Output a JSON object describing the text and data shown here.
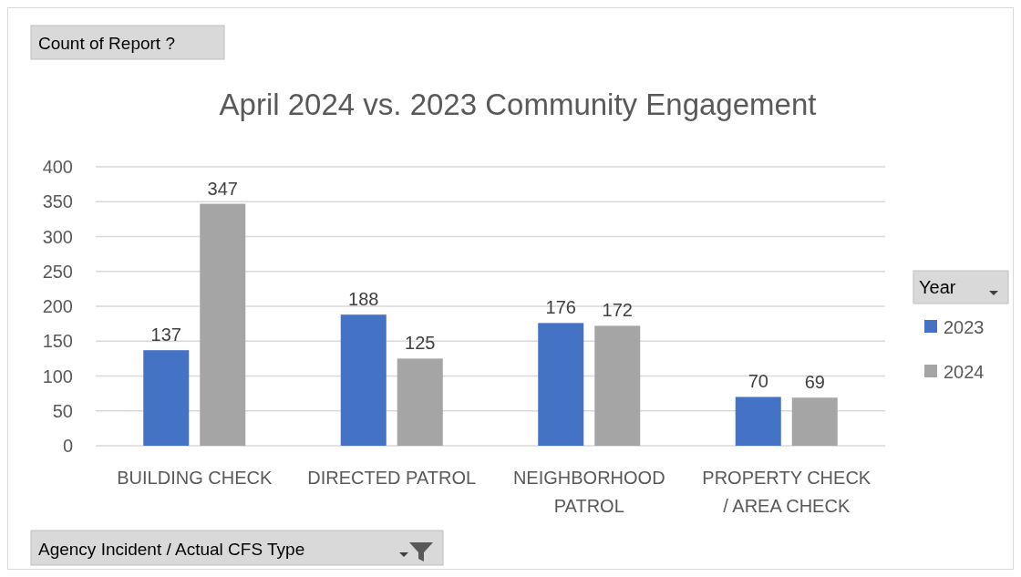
{
  "chart_data": {
    "type": "bar",
    "title": "April 2024 vs. 2023 Community Engagement",
    "annotations": [
      "Count of Report ?"
    ],
    "xlabel": "Agency Incident / Actual CFS Type",
    "legend_title": "Year",
    "categories": [
      "BUILDING CHECK",
      "DIRECTED PATROL",
      "NEIGHBORHOOD PATROL",
      "PROPERTY CHECK / AREA CHECK"
    ],
    "series": [
      {
        "name": "2023",
        "color": "#4472c4",
        "values": [
          137,
          188,
          176,
          70
        ]
      },
      {
        "name": "2024",
        "color": "#a5a5a5",
        "values": [
          347,
          125,
          172,
          69
        ]
      }
    ],
    "ylim": [
      0,
      400
    ],
    "yticks": [
      0,
      50,
      100,
      150,
      200,
      250,
      300,
      350,
      400
    ],
    "grid": "y",
    "legend": "right",
    "data_labels": true
  }
}
